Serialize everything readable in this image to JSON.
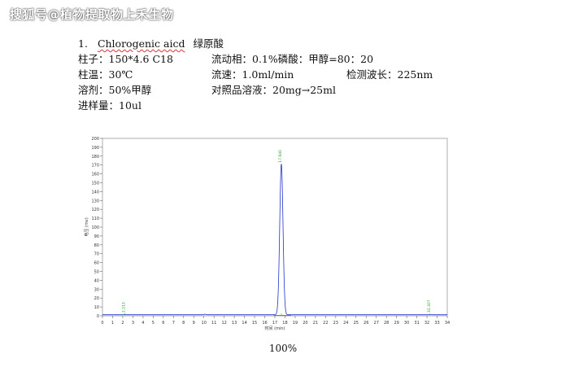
{
  "watermark": "搜狐号@植物提取物上禾生物",
  "header": {
    "num": "1.",
    "name_en": "Chlorogenic aicd",
    "name_cn": "绿原酸"
  },
  "conditions": {
    "column": "柱子：150*4.6 C18",
    "mobile_phase": "流动相：0.1%磷酸：甲醇=80：20",
    "temp": "柱温：30℃",
    "flow": "流速：1.0ml/min",
    "wavelength": "检测波长：225nm",
    "solvent": "溶剂：50%甲醇",
    "ref_solution": "对照品溶液：20mg→25ml",
    "injection": "进样量：10ul"
  },
  "chart_data": {
    "type": "line",
    "xlabel": "时间 (min)",
    "ylabel": "电压 (mv)",
    "xlim": [
      0,
      34
    ],
    "ylim": [
      0,
      200
    ],
    "x_ticks": [
      0,
      1,
      2,
      3,
      4,
      5,
      6,
      7,
      8,
      9,
      10,
      11,
      12,
      13,
      14,
      15,
      16,
      17,
      18,
      19,
      20,
      21,
      22,
      23,
      24,
      25,
      26,
      27,
      28,
      29,
      30,
      31,
      32,
      33,
      34
    ],
    "y_ticks": [
      0,
      10,
      20,
      30,
      40,
      50,
      60,
      70,
      80,
      90,
      100,
      110,
      120,
      130,
      140,
      150,
      160,
      170,
      180,
      190,
      200
    ],
    "peaks": [
      {
        "rt": 17.64,
        "height": 170,
        "label": "17.640"
      },
      {
        "rt": 2.213,
        "height": 0.8,
        "label": "2.213"
      },
      {
        "rt": 32.307,
        "height": 0.8,
        "label": "32.307"
      }
    ],
    "colors": {
      "signal": "#2233cc",
      "peak_label": "#2a9d2a",
      "baseline": "#cc3322",
      "grid": "#cccccc"
    }
  },
  "caption": "100%"
}
